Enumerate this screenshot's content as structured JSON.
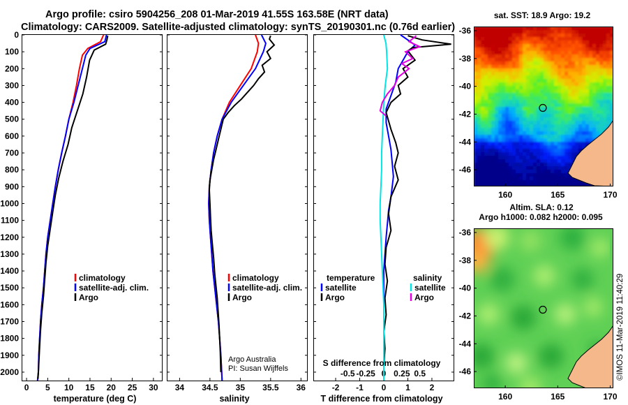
{
  "header": {
    "line1": "Argo profile: csiro 5904256_208 01-Mar-2019 41.55S 163.58E (NRT data)",
    "line2": "Climatology: CARS2009. Satellite-adjusted climatology: synTS_20190301.nc (0.76d earlier)"
  },
  "credits": {
    "org": "Argo Australia",
    "pi": "PI: Susan Wijffels"
  },
  "timestamp": "©IMOS 11-Mar-2019 11:40:29",
  "colors": {
    "climatology": "#ff0000",
    "satellite": "#0000ff",
    "argo": "#000000",
    "sat_salinity": "#00e5e5",
    "argo_salinity": "#e000e0"
  },
  "chart_data": [
    {
      "id": "temperature",
      "type": "line",
      "xlabel": "temperature (deg C)",
      "xlim": [
        -1,
        32
      ],
      "ylim": [
        2050,
        0
      ],
      "xticks": [
        0,
        5,
        10,
        15,
        20,
        25,
        30
      ],
      "yticks": [
        0,
        100,
        200,
        300,
        400,
        500,
        600,
        700,
        800,
        900,
        1000,
        1100,
        1200,
        1300,
        1400,
        1500,
        1600,
        1700,
        1800,
        1900,
        2000
      ],
      "legend": [
        "climatology",
        "satellite-adj. clim.",
        "Argo"
      ],
      "series": [
        {
          "name": "climatology",
          "color": "#ff0000",
          "x": [
            18.2,
            17.5,
            14.5,
            13.2,
            12.5,
            11.8,
            11.0,
            10.0,
            9.2,
            8.3,
            7.5,
            6.8,
            6.2,
            5.6,
            5.0,
            4.6,
            4.3,
            4.0,
            3.6,
            3.3,
            3.1,
            2.9,
            2.8,
            2.6
          ],
          "y": [
            0,
            40,
            80,
            120,
            200,
            300,
            400,
            500,
            600,
            700,
            800,
            900,
            1000,
            1100,
            1200,
            1300,
            1400,
            1500,
            1600,
            1700,
            1800,
            1900,
            2000,
            2050
          ]
        },
        {
          "name": "satellite-adj. clim.",
          "color": "#0000ff",
          "x": [
            18.9,
            18.5,
            15.0,
            14.0,
            13.2,
            12.2,
            11.2,
            10.0,
            9.2,
            8.3,
            7.5,
            6.8,
            6.2,
            5.6,
            5.0,
            4.6,
            4.3,
            4.0,
            3.6,
            3.3,
            3.1,
            2.9,
            2.8,
            2.6
          ],
          "y": [
            0,
            40,
            80,
            120,
            200,
            300,
            400,
            500,
            600,
            700,
            800,
            900,
            1000,
            1100,
            1200,
            1300,
            1400,
            1500,
            1600,
            1700,
            1800,
            1900,
            2000,
            2050
          ]
        },
        {
          "name": "Argo",
          "color": "#000000",
          "x": [
            19.2,
            19.0,
            18.7,
            16.0,
            14.9,
            14.2,
            13.3,
            12.0,
            10.7,
            9.8,
            8.6,
            7.6,
            6.8,
            6.2,
            5.6,
            5.0,
            4.6,
            4.3,
            4.0,
            3.6,
            3.3,
            3.1,
            2.9,
            2.8,
            2.7
          ],
          "y": [
            5,
            30,
            55,
            90,
            150,
            250,
            350,
            450,
            550,
            650,
            750,
            850,
            950,
            1050,
            1150,
            1250,
            1350,
            1450,
            1550,
            1650,
            1750,
            1850,
            1950,
            2000,
            2040
          ]
        }
      ]
    },
    {
      "id": "salinity",
      "type": "line",
      "xlabel": "salinity",
      "xlim": [
        33.8,
        36.1
      ],
      "ylim": [
        2050,
        0
      ],
      "xticks": [
        34,
        34.5,
        35,
        35.5,
        36
      ],
      "xticklabels": [
        "34",
        "34.5",
        "35",
        "35.5",
        "36"
      ],
      "legend": [
        "climatology",
        "satellite-adj. clim.",
        "Argo"
      ],
      "series": [
        {
          "name": "climatology",
          "color": "#ff0000",
          "x": [
            35.25,
            35.3,
            35.28,
            35.18,
            35.0,
            34.82,
            34.7,
            34.62,
            34.56,
            34.52,
            34.49,
            34.48,
            34.49,
            34.51,
            34.53,
            34.55,
            34.58,
            34.61,
            34.64,
            34.66,
            34.68,
            34.7
          ],
          "y": [
            0,
            50,
            100,
            200,
            300,
            400,
            500,
            600,
            700,
            800,
            900,
            1000,
            1100,
            1200,
            1300,
            1400,
            1500,
            1600,
            1700,
            1800,
            1900,
            2050
          ]
        },
        {
          "name": "satellite-adj. clim.",
          "color": "#0000ff",
          "x": [
            35.35,
            35.42,
            35.38,
            35.25,
            35.05,
            34.85,
            34.7,
            34.62,
            34.56,
            34.52,
            34.49,
            34.48,
            34.49,
            34.51,
            34.53,
            34.55,
            34.58,
            34.61,
            34.64,
            34.66,
            34.68,
            34.7
          ],
          "y": [
            0,
            50,
            100,
            200,
            300,
            400,
            500,
            600,
            700,
            800,
            900,
            1000,
            1100,
            1200,
            1300,
            1400,
            1500,
            1600,
            1700,
            1800,
            1900,
            2050
          ]
        },
        {
          "name": "Argo",
          "color": "#000000",
          "x": [
            35.5,
            35.48,
            35.56,
            35.44,
            35.5,
            35.36,
            35.4,
            35.3,
            35.22,
            35.12,
            35.02,
            34.9,
            34.8,
            34.72,
            34.68,
            34.64,
            34.6,
            34.56,
            34.53,
            34.5,
            34.49,
            34.5,
            34.51,
            34.52,
            34.54,
            34.56,
            34.58,
            34.62,
            34.65,
            34.67,
            34.68
          ],
          "y": [
            5,
            25,
            60,
            100,
            140,
            180,
            220,
            260,
            300,
            340,
            380,
            420,
            460,
            500,
            560,
            620,
            680,
            740,
            800,
            860,
            920,
            1000,
            1080,
            1160,
            1240,
            1320,
            1420,
            1560,
            1720,
            1880,
            2000
          ]
        }
      ]
    },
    {
      "id": "difference",
      "type": "line",
      "xlabel": "T difference from climatology",
      "xlabel2": "S difference from climatology",
      "xlim": [
        -2.9,
        2.9
      ],
      "ylim": [
        2050,
        0
      ],
      "xticks": [
        -2,
        -1,
        0,
        1,
        2
      ],
      "x2ticks": [
        -0.5,
        -0.25,
        0,
        0.25,
        0.5
      ],
      "x2ticklabels": [
        "-0.5",
        "-0.25",
        "0",
        "0.25",
        "0.5"
      ],
      "legend_temperature_title": "temperature",
      "legend_salinity_title": "salinity",
      "legend_temperature": [
        "satellite",
        "Argo"
      ],
      "legend_salinity": [
        "satellite",
        "Argo"
      ],
      "series": [
        {
          "name": "temperature satellite",
          "color": "#0000ff",
          "x": [
            0.7,
            0.9,
            1.3,
            1.0,
            0.8,
            0.6,
            0.5,
            0.3,
            0.1,
            0.1,
            0.2,
            0.3,
            0.35,
            0.4,
            0.35,
            0.3,
            0.2,
            0.15,
            0.1,
            0.05,
            0.0,
            0.0,
            0.0,
            0.0,
            0.0,
            0.0,
            0.0
          ],
          "y": [
            0,
            20,
            60,
            100,
            150,
            200,
            280,
            360,
            440,
            520,
            600,
            680,
            760,
            840,
            900,
            960,
            1040,
            1120,
            1200,
            1300,
            1400,
            1500,
            1600,
            1700,
            1800,
            1900,
            2050
          ]
        },
        {
          "name": "temperature Argo",
          "color": "#000000",
          "x": [
            1.0,
            1.6,
            2.8,
            1.2,
            1.0,
            1.3,
            0.8,
            1.0,
            0.6,
            0.7,
            0.3,
            0.1,
            0.3,
            0.5,
            0.6,
            0.45,
            0.6,
            0.3,
            0.2,
            0.3,
            0.1,
            0.05,
            0.15,
            0.05,
            0.1,
            0.0,
            0.05,
            0.0,
            0.0
          ],
          "y": [
            5,
            30,
            55,
            75,
            95,
            150,
            200,
            250,
            300,
            350,
            400,
            460,
            560,
            640,
            700,
            780,
            860,
            960,
            1060,
            1160,
            1260,
            1360,
            1460,
            1560,
            1660,
            1760,
            1860,
            1960,
            2040
          ]
        },
        {
          "name": "salinity satellite",
          "color": "#00e5e5",
          "x": [
            0.0,
            0.03,
            0.04,
            0.05,
            0.02,
            0.0,
            -0.01,
            -0.02,
            -0.03,
            -0.03,
            -0.04,
            -0.05,
            -0.05,
            -0.04,
            -0.03,
            -0.02,
            -0.01,
            0.0,
            0.0,
            0.0,
            0.0,
            0.0,
            0.0
          ],
          "y": [
            0,
            50,
            100,
            200,
            300,
            400,
            500,
            600,
            700,
            800,
            900,
            1000,
            1100,
            1200,
            1300,
            1400,
            1500,
            1600,
            1700,
            1800,
            1900,
            2000,
            2050
          ]
        },
        {
          "name": "salinity Argo",
          "color": "#e000e0",
          "x": [
            0.45,
            0.35,
            0.5,
            0.3,
            0.4,
            0.25,
            0.35,
            0.2,
            0.15,
            0.05,
            -0.02,
            -0.05,
            0.03
          ],
          "y": [
            5,
            40,
            70,
            100,
            140,
            170,
            200,
            250,
            300,
            350,
            400,
            450,
            480
          ]
        }
      ]
    },
    {
      "id": "sst-map",
      "type": "heatmap",
      "title": "sat. SST: 18.9 Argo: 19.2",
      "xlim": [
        157,
        170.3
      ],
      "ylim": [
        -47.2,
        -35.7
      ],
      "xticks": [
        160,
        165,
        170
      ],
      "yticks": [
        -36,
        -38,
        -40,
        -42,
        -44,
        -46
      ],
      "marker": {
        "lon": 163.58,
        "lat": -41.55
      }
    },
    {
      "id": "sla-map",
      "type": "heatmap",
      "title": "Altim. SLA: 0.12",
      "subtitle": "Argo h1000: 0.082 h2000: 0.095",
      "xlim": [
        157,
        170.3
      ],
      "ylim": [
        -47.2,
        -35.7
      ],
      "xticks": [
        160,
        165,
        170
      ],
      "yticks": [
        -36,
        -38,
        -40,
        -42,
        -44,
        -46
      ],
      "marker": {
        "lon": 163.58,
        "lat": -41.55
      }
    }
  ]
}
